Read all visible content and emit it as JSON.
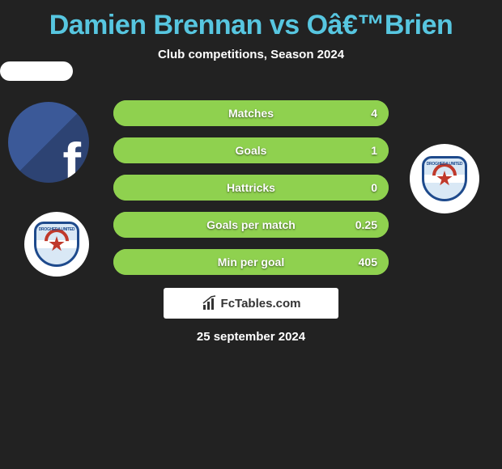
{
  "title": {
    "player1": "Damien Brennan",
    "vs": "vs",
    "player2": "Oâ€™Brien"
  },
  "subtitle": "Club competitions, Season 2024",
  "colors": {
    "title": "#57c6e0",
    "bar_border": "#8fd14f",
    "bar_fill": "#8fd14f",
    "text": "#ffffff",
    "bg": "#222222"
  },
  "stats": [
    {
      "label": "Matches",
      "value": "4",
      "fill_pct": 100
    },
    {
      "label": "Goals",
      "value": "1",
      "fill_pct": 100
    },
    {
      "label": "Hattricks",
      "value": "0",
      "fill_pct": 100
    },
    {
      "label": "Goals per match",
      "value": "0.25",
      "fill_pct": 100
    },
    {
      "label": "Min per goal",
      "value": "405",
      "fill_pct": 100
    }
  ],
  "club_badge_text": "DROGHEDA UNITED",
  "footer_brand": "FcTables.com",
  "date": "25 september 2024"
}
